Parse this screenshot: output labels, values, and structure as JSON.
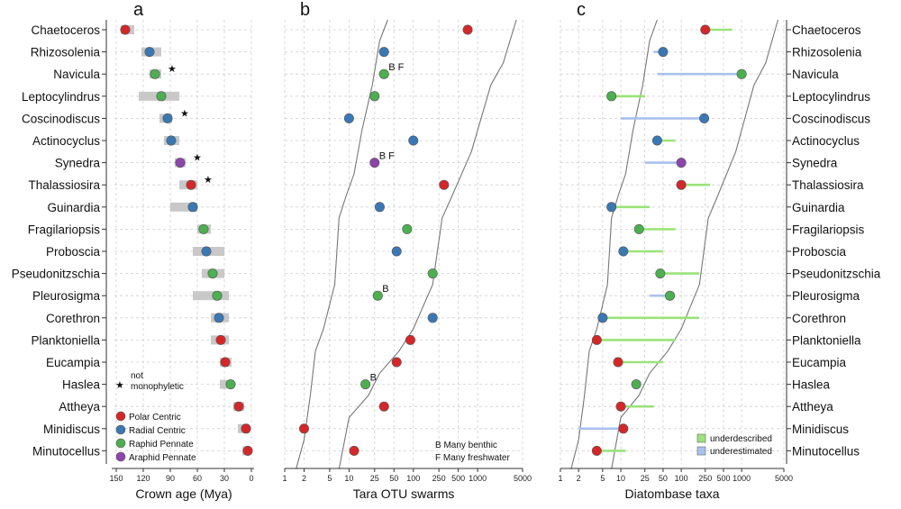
{
  "chart_data": {
    "type": "scatter",
    "taxa": [
      "Chaetoceros",
      "Rhizosolenia",
      "Navicula",
      "Leptocylindrus",
      "Coscinodiscus",
      "Actinocyclus",
      "Synedra",
      "Thalassiosira",
      "Guinardia",
      "Fragilariopsis",
      "Proboscia",
      "Pseudonitzschia",
      "Pleurosigma",
      "Corethron",
      "Planktoniella",
      "Eucampia",
      "Haslea",
      "Attheya",
      "Minidiscus",
      "Minutocellus"
    ],
    "groups": [
      "polar",
      "radial",
      "raphid",
      "raphid",
      "radial",
      "radial",
      "araphid",
      "polar",
      "radial",
      "raphid",
      "radial",
      "raphid",
      "raphid",
      "radial",
      "polar",
      "polar",
      "raphid",
      "polar",
      "polar",
      "polar"
    ],
    "colors": {
      "polar": "#d62728",
      "radial": "#3a78b5",
      "raphid": "#4caf50",
      "araphid": "#8e44ad",
      "bar": "#c8c8c8",
      "under": "#9be37a",
      "over": "#a9c1ec",
      "curve": "#777777",
      "grid": "#cfcfcf"
    },
    "panels": [
      {
        "label": "a",
        "xlabel": "Crown age (Mya)",
        "xticks": [
          "150",
          "120",
          "90",
          "60",
          "30",
          "0"
        ],
        "tick_values": [
          150,
          120,
          90,
          60,
          30,
          0
        ],
        "xlim": [
          150,
          0
        ],
        "points": [
          140,
          113,
          107,
          100,
          93,
          89,
          79,
          67,
          65,
          53,
          50,
          43,
          38,
          36,
          34,
          29,
          23,
          14,
          6,
          4
        ],
        "ranges": [
          [
            145,
            130
          ],
          [
            122,
            100
          ],
          [
            113,
            100
          ],
          [
            125,
            80
          ],
          [
            102,
            88
          ],
          [
            97,
            80
          ],
          [
            85,
            73
          ],
          [
            80,
            60
          ],
          [
            90,
            60
          ],
          [
            60,
            45
          ],
          [
            65,
            30
          ],
          [
            55,
            30
          ],
          [
            65,
            25
          ],
          [
            45,
            25
          ],
          [
            45,
            25
          ],
          [
            35,
            22
          ],
          [
            35,
            20
          ],
          [
            20,
            8
          ],
          [
            15,
            2
          ],
          [
            10,
            2
          ]
        ],
        "stars": [
          2,
          4,
          6,
          7
        ],
        "star_legend": [
          "not",
          "monophyletic"
        ],
        "legend": [
          {
            "label": "Polar Centric",
            "group": "polar"
          },
          {
            "label": "Radial Centric",
            "group": "radial"
          },
          {
            "label": "Raphid Pennate",
            "group": "raphid"
          },
          {
            "label": "Araphid Pennate",
            "group": "araphid"
          }
        ]
      },
      {
        "label": "b",
        "xlabel": "Tara OTU swarms",
        "xticks": [
          "1",
          "2",
          "5",
          "10",
          "25",
          "50",
          "100",
          "250",
          "500",
          "1000",
          "5000"
        ],
        "tick_values": [
          1,
          2,
          5,
          10,
          25,
          50,
          100,
          250,
          500,
          1000,
          5000
        ],
        "points": [
          700,
          35,
          35,
          25,
          10,
          100,
          25,
          300,
          30,
          80,
          55,
          200,
          28,
          200,
          90,
          55,
          18,
          35,
          2,
          12
        ],
        "annotations": [
          {
            "row": 2,
            "text": "B F"
          },
          {
            "row": 6,
            "text": "B F"
          },
          {
            "row": 12,
            "text": "B"
          },
          {
            "row": 16,
            "text": "B"
          }
        ],
        "curve_left": [
          [
            40,
            0
          ],
          [
            30,
            1
          ],
          [
            23,
            3
          ],
          [
            16,
            5
          ],
          [
            12,
            7
          ],
          [
            9,
            8
          ],
          [
            7,
            9
          ],
          [
            6,
            12
          ],
          [
            4,
            14
          ],
          [
            3,
            15
          ],
          [
            2.5,
            17
          ],
          [
            2,
            19
          ],
          [
            1.5,
            20
          ]
        ],
        "curve_right": [
          [
            4000,
            0
          ],
          [
            2500,
            2
          ],
          [
            1600,
            3
          ],
          [
            800,
            6
          ],
          [
            400,
            8
          ],
          [
            280,
            9
          ],
          [
            200,
            12
          ],
          [
            100,
            14
          ],
          [
            60,
            15
          ],
          [
            30,
            16
          ],
          [
            20,
            17
          ],
          [
            10,
            18
          ],
          [
            7,
            20
          ]
        ],
        "legend": [
          "B  Many benthic",
          "F  Many freshwater"
        ]
      },
      {
        "label": "c",
        "xlabel": "Diatombase taxa",
        "xticks": [
          "1",
          "2",
          "5",
          "10",
          "25",
          "50",
          "100",
          "250",
          "500",
          "1000",
          "5000"
        ],
        "tick_values": [
          1,
          2,
          5,
          10,
          25,
          50,
          100,
          250,
          500,
          1000,
          5000
        ],
        "points": [
          250,
          50,
          1000,
          7,
          240,
          40,
          100,
          100,
          7,
          20,
          11,
          45,
          65,
          5,
          4,
          9,
          18,
          10,
          11,
          4
        ],
        "segments": [
          [
            250,
            700,
            "under"
          ],
          [
            35,
            50,
            "over"
          ],
          [
            40,
            1000,
            "over"
          ],
          [
            7,
            25,
            "under"
          ],
          [
            10,
            240,
            "over"
          ],
          [
            40,
            80,
            "under"
          ],
          [
            25,
            100,
            "over"
          ],
          [
            100,
            300,
            "under"
          ],
          [
            7,
            30,
            "under"
          ],
          [
            20,
            80,
            "under"
          ],
          [
            11,
            50,
            "under"
          ],
          [
            45,
            200,
            "under"
          ],
          [
            30,
            65,
            "over"
          ],
          [
            5,
            200,
            "under"
          ],
          [
            4,
            80,
            "under"
          ],
          [
            9,
            50,
            "under"
          ],
          [
            18,
            18,
            "under"
          ],
          [
            10,
            35,
            "under"
          ],
          [
            2,
            11,
            "over"
          ],
          [
            4,
            12,
            "under"
          ]
        ],
        "curve_left": [
          [
            40,
            0
          ],
          [
            30,
            1
          ],
          [
            23,
            3
          ],
          [
            16,
            5
          ],
          [
            12,
            7
          ],
          [
            9,
            8
          ],
          [
            7,
            9
          ],
          [
            6,
            12
          ],
          [
            4,
            14
          ],
          [
            3,
            15
          ],
          [
            2.5,
            17
          ],
          [
            2,
            19
          ],
          [
            1.5,
            20
          ]
        ],
        "curve_right": [
          [
            4000,
            0
          ],
          [
            2500,
            2
          ],
          [
            1600,
            3
          ],
          [
            800,
            6
          ],
          [
            400,
            8
          ],
          [
            280,
            9
          ],
          [
            200,
            12
          ],
          [
            100,
            14
          ],
          [
            60,
            15
          ],
          [
            30,
            16
          ],
          [
            20,
            17
          ],
          [
            10,
            18
          ],
          [
            7,
            20
          ]
        ],
        "legend": [
          {
            "label": "underdescribed",
            "kind": "under"
          },
          {
            "label": "underestimated",
            "kind": "over"
          }
        ]
      }
    ]
  }
}
